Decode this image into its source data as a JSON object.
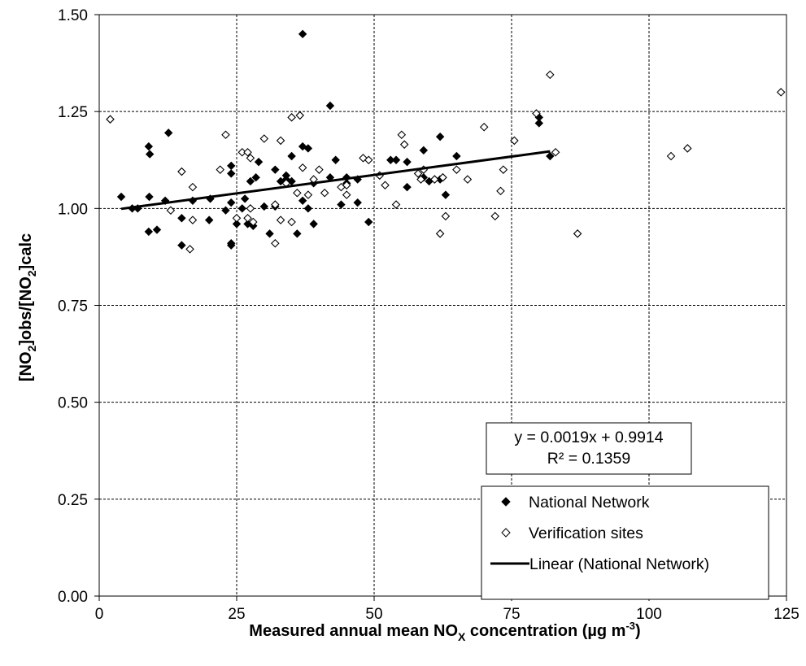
{
  "chart_data": {
    "type": "scatter",
    "title": "",
    "xlabel": {
      "main": "Measured annual mean NO",
      "sub": "X",
      "tail": " concentration (µg m",
      "sup": "-3",
      "close": ")"
    },
    "ylabel": {
      "p1": "[NO",
      "s1": "2",
      "p2": "]obs/[NO",
      "s2": "2",
      "p3": "]calc"
    },
    "xlim": [
      0,
      125
    ],
    "ylim": [
      0,
      1.5
    ],
    "xticks": [
      0,
      25,
      50,
      75,
      100,
      125
    ],
    "yticks": [
      0,
      0.25,
      0.5,
      0.75,
      1.0,
      1.25,
      1.5
    ],
    "xtick_labels": [
      "0",
      "25",
      "50",
      "75",
      "100",
      "125"
    ],
    "ytick_labels": [
      "0.00",
      "0.25",
      "0.50",
      "0.75",
      "1.00",
      "1.25",
      "1.50"
    ],
    "grid": true,
    "legend_position": "bottom-right",
    "series": [
      {
        "name": "National Network",
        "marker": "filled-diamond",
        "color": "#000000",
        "points": [
          [
            4.0,
            1.03
          ],
          [
            6,
            1.0
          ],
          [
            7,
            1.0
          ],
          [
            9,
            1.16
          ],
          [
            9.2,
            1.14
          ],
          [
            9.1,
            1.03
          ],
          [
            9,
            0.94
          ],
          [
            10.5,
            0.945
          ],
          [
            12,
            1.02
          ],
          [
            12.6,
            1.195
          ],
          [
            15,
            0.905
          ],
          [
            15,
            0.975
          ],
          [
            17,
            1.02
          ],
          [
            20,
            0.97
          ],
          [
            20.2,
            1.025
          ],
          [
            23,
            0.995
          ],
          [
            24,
            1.11
          ],
          [
            24,
            1.09
          ],
          [
            24,
            0.91
          ],
          [
            24,
            0.905
          ],
          [
            24,
            1.015
          ],
          [
            25,
            0.96
          ],
          [
            26,
            1.0
          ],
          [
            26.5,
            1.025
          ],
          [
            27,
            0.96
          ],
          [
            27.5,
            1.07
          ],
          [
            28,
            0.955
          ],
          [
            28.5,
            1.08
          ],
          [
            29,
            1.12
          ],
          [
            30,
            1.005
          ],
          [
            31,
            0.935
          ],
          [
            32,
            1.1
          ],
          [
            32,
            1.005
          ],
          [
            33,
            1.07
          ],
          [
            34,
            1.075
          ],
          [
            34,
            1.085
          ],
          [
            35,
            1.135
          ],
          [
            35,
            1.07
          ],
          [
            36,
            0.935
          ],
          [
            37,
            1.45
          ],
          [
            37,
            1.16
          ],
          [
            37,
            1.02
          ],
          [
            38,
            1.155
          ],
          [
            38,
            1.0
          ],
          [
            39,
            0.96
          ],
          [
            39,
            1.065
          ],
          [
            42,
            1.265
          ],
          [
            42,
            1.08
          ],
          [
            43,
            1.125
          ],
          [
            44,
            1.01
          ],
          [
            45,
            1.065
          ],
          [
            45,
            1.08
          ],
          [
            47,
            1.015
          ],
          [
            47,
            1.075
          ],
          [
            49,
            0.965
          ],
          [
            53,
            1.125
          ],
          [
            54,
            1.125
          ],
          [
            56,
            1.055
          ],
          [
            56,
            1.12
          ],
          [
            59,
            1.15
          ],
          [
            59,
            1.08
          ],
          [
            60,
            1.07
          ],
          [
            61,
            1.075
          ],
          [
            62,
            1.075
          ],
          [
            62,
            1.185
          ],
          [
            63,
            1.035
          ],
          [
            65,
            1.135
          ],
          [
            80,
            1.22
          ],
          [
            80,
            1.235
          ],
          [
            82,
            1.135
          ]
        ]
      },
      {
        "name": "Verification sites",
        "marker": "open-diamond",
        "color": "#000000",
        "points": [
          [
            2,
            1.23
          ],
          [
            13,
            0.995
          ],
          [
            15,
            1.095
          ],
          [
            16.5,
            0.895
          ],
          [
            17,
            1.055
          ],
          [
            17,
            0.97
          ],
          [
            22,
            1.1
          ],
          [
            23,
            1.19
          ],
          [
            25,
            0.975
          ],
          [
            26,
            1.145
          ],
          [
            27,
            1.145
          ],
          [
            27.5,
            1.13
          ],
          [
            27,
            0.975
          ],
          [
            28,
            0.965
          ],
          [
            27.5,
            1.0
          ],
          [
            30,
            1.18
          ],
          [
            32,
            1.01
          ],
          [
            32,
            0.91
          ],
          [
            33,
            0.97
          ],
          [
            33,
            1.175
          ],
          [
            34,
            1.065
          ],
          [
            35,
            0.965
          ],
          [
            35,
            1.235
          ],
          [
            36,
            1.04
          ],
          [
            36.5,
            1.24
          ],
          [
            37,
            1.105
          ],
          [
            38,
            1.035
          ],
          [
            39,
            1.075
          ],
          [
            40,
            1.1
          ],
          [
            41,
            1.04
          ],
          [
            44,
            1.055
          ],
          [
            45,
            1.06
          ],
          [
            45,
            1.035
          ],
          [
            48,
            1.13
          ],
          [
            49,
            1.125
          ],
          [
            51,
            1.085
          ],
          [
            52,
            1.06
          ],
          [
            54,
            1.01
          ],
          [
            55,
            1.19
          ],
          [
            55.5,
            1.165
          ],
          [
            58,
            1.09
          ],
          [
            58.5,
            1.075
          ],
          [
            59,
            1.1
          ],
          [
            61,
            1.075
          ],
          [
            62,
            0.935
          ],
          [
            62.5,
            1.08
          ],
          [
            63,
            0.98
          ],
          [
            65,
            1.1
          ],
          [
            67,
            1.075
          ],
          [
            70,
            1.21
          ],
          [
            72,
            0.98
          ],
          [
            73,
            1.045
          ],
          [
            73.5,
            1.1
          ],
          [
            75.5,
            1.175
          ],
          [
            79.5,
            1.245
          ],
          [
            82,
            1.345
          ],
          [
            83,
            1.145
          ],
          [
            87,
            0.935
          ],
          [
            104,
            1.135
          ],
          [
            107,
            1.155
          ],
          [
            124,
            1.3
          ]
        ]
      }
    ],
    "trendline": {
      "name": "Linear (National Network)",
      "slope": 0.0019,
      "intercept": 0.9914,
      "x_range": [
        4,
        82
      ],
      "color": "#000000"
    },
    "annotation": {
      "line1": "y = 0.0019x + 0.9914",
      "line2": "R² = 0.1359"
    }
  }
}
